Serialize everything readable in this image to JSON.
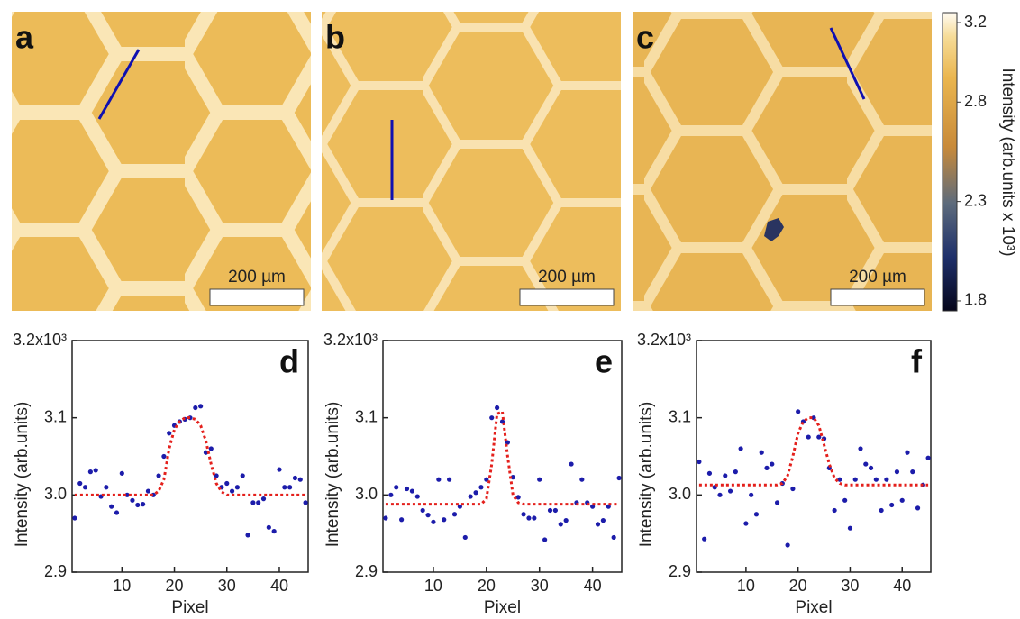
{
  "images": [
    {
      "label": "a",
      "scalebar": "200 µm"
    },
    {
      "label": "b",
      "scalebar": "200 µm"
    },
    {
      "label": "c",
      "scalebar": "200 µm"
    }
  ],
  "colorbar": {
    "label": "Intensity (arb.units  x 10³)",
    "ylim": [
      1.75,
      3.25
    ],
    "ticks": [
      1.8,
      2.3,
      2.8,
      3.2
    ]
  },
  "chart_data": [
    {
      "type": "scatter",
      "label": "d",
      "x_label": "Pixel",
      "y_label": "Intensity (arb.units)",
      "xlim": [
        0.5,
        45.5
      ],
      "xticks": [
        10,
        20,
        30,
        40
      ],
      "ylim": [
        2.9,
        3.2
      ],
      "yticks": [
        2.9,
        {
          "value": 3.0,
          "label": "3.0"
        },
        3.1,
        {
          "value": 3.2,
          "label": "3.2x10³"
        }
      ],
      "x": [
        1,
        2,
        3,
        4,
        5,
        6,
        7,
        8,
        9,
        10,
        11,
        12,
        13,
        14,
        15,
        16,
        17,
        18,
        19,
        20,
        21,
        22,
        23,
        24,
        25,
        26,
        27,
        28,
        29,
        30,
        31,
        32,
        33,
        34,
        35,
        36,
        37,
        38,
        39,
        40,
        41,
        42,
        43,
        44,
        45
      ],
      "series": [
        {
          "mode": "markers",
          "color": "#1c1caa",
          "values": [
            2.97,
            3.015,
            3.01,
            3.03,
            3.032,
            2.998,
            3.01,
            2.985,
            2.977,
            3.028,
            3.0,
            2.993,
            2.987,
            2.988,
            3.005,
            3.0,
            3.025,
            3.05,
            3.08,
            3.09,
            3.095,
            3.098,
            3.1,
            3.113,
            3.115,
            3.055,
            3.06,
            3.025,
            3.01,
            3.015,
            3.005,
            3.01,
            3.025,
            2.948,
            2.99,
            2.99,
            2.995,
            2.958,
            2.953,
            3.033,
            3.01,
            3.01,
            3.022,
            3.02,
            2.99
          ]
        },
        {
          "mode": "line",
          "color": "#e4201c",
          "values": [
            3.0,
            3.0,
            3.0,
            3.0,
            3.0,
            3.0,
            3.0,
            3.0,
            3.0,
            3.0,
            3.0,
            3.0,
            3.0,
            3.0,
            3.0,
            3.0,
            3.005,
            3.02,
            3.06,
            3.085,
            3.095,
            3.1,
            3.1,
            3.098,
            3.09,
            3.07,
            3.04,
            3.015,
            3.004,
            3.0,
            3.0,
            3.0,
            3.0,
            3.0,
            3.0,
            3.0,
            3.0,
            3.0,
            3.0,
            3.0,
            3.0,
            3.0,
            3.0,
            3.0,
            3.0
          ]
        }
      ]
    },
    {
      "type": "scatter",
      "label": "e",
      "x_label": "Pixel",
      "y_label": "Intensity (arb.units)",
      "xlim": [
        0.5,
        45.5
      ],
      "xticks": [
        10,
        20,
        30,
        40
      ],
      "ylim": [
        2.9,
        3.2
      ],
      "yticks": [
        2.9,
        {
          "value": 3.0,
          "label": "3.0"
        },
        3.1,
        {
          "value": 3.2,
          "label": "3.2x10³"
        }
      ],
      "x": [
        1,
        2,
        3,
        4,
        5,
        6,
        7,
        8,
        9,
        10,
        11,
        12,
        13,
        14,
        15,
        16,
        17,
        18,
        19,
        20,
        21,
        22,
        23,
        24,
        25,
        26,
        27,
        28,
        29,
        30,
        31,
        32,
        33,
        34,
        35,
        36,
        37,
        38,
        39,
        40,
        41,
        42,
        43,
        44,
        45
      ],
      "series": [
        {
          "mode": "markers",
          "color": "#1c1caa",
          "values": [
            2.97,
            3.0,
            3.01,
            2.968,
            3.008,
            3.005,
            2.998,
            2.98,
            2.974,
            2.965,
            3.02,
            2.968,
            3.02,
            2.975,
            2.985,
            2.945,
            2.998,
            3.003,
            3.01,
            3.02,
            3.1,
            3.113,
            3.095,
            3.068,
            3.023,
            2.997,
            2.975,
            2.97,
            2.97,
            3.02,
            2.942,
            2.98,
            2.98,
            2.962,
            2.967,
            3.04,
            2.99,
            3.02,
            2.99,
            2.985,
            2.962,
            2.967,
            2.985,
            2.945,
            3.022
          ]
        },
        {
          "mode": "line",
          "color": "#e4201c",
          "values": [
            2.988,
            2.988,
            2.988,
            2.988,
            2.988,
            2.988,
            2.988,
            2.988,
            2.988,
            2.988,
            2.988,
            2.988,
            2.988,
            2.988,
            2.988,
            2.988,
            2.988,
            2.988,
            2.988,
            2.995,
            3.04,
            3.105,
            3.108,
            3.05,
            3.0,
            2.99,
            2.988,
            2.988,
            2.988,
            2.988,
            2.988,
            2.988,
            2.988,
            2.988,
            2.988,
            2.988,
            2.988,
            2.988,
            2.988,
            2.988,
            2.988,
            2.988,
            2.988,
            2.988,
            2.988
          ]
        }
      ]
    },
    {
      "type": "scatter",
      "label": "f",
      "x_label": "Pixel",
      "y_label": "Intensity (arb.units)",
      "xlim": [
        0.5,
        45.5
      ],
      "xticks": [
        10,
        20,
        30,
        40
      ],
      "ylim": [
        2.9,
        3.2
      ],
      "yticks": [
        2.9,
        {
          "value": 3.0,
          "label": "3.0"
        },
        3.1,
        {
          "value": 3.2,
          "label": "3.2x10³"
        }
      ],
      "x": [
        1,
        2,
        3,
        4,
        5,
        6,
        7,
        8,
        9,
        10,
        11,
        12,
        13,
        14,
        15,
        16,
        17,
        18,
        19,
        20,
        21,
        22,
        23,
        24,
        25,
        26,
        27,
        28,
        29,
        30,
        31,
        32,
        33,
        34,
        35,
        36,
        37,
        38,
        39,
        40,
        41,
        42,
        43,
        44,
        45
      ],
      "series": [
        {
          "mode": "markers",
          "color": "#1c1caa",
          "values": [
            3.043,
            2.943,
            3.028,
            3.01,
            3.0,
            3.025,
            3.005,
            3.03,
            3.06,
            2.963,
            3.0,
            2.975,
            3.055,
            3.035,
            3.04,
            2.99,
            3.015,
            2.935,
            3.008,
            3.108,
            3.095,
            3.075,
            3.1,
            3.075,
            3.073,
            3.035,
            2.98,
            3.02,
            2.993,
            2.957,
            3.02,
            3.06,
            3.04,
            3.035,
            3.02,
            2.98,
            3.02,
            2.987,
            3.03,
            2.993,
            3.055,
            3.03,
            2.983,
            3.013,
            3.048
          ]
        },
        {
          "mode": "line",
          "color": "#e4201c",
          "values": [
            3.013,
            3.013,
            3.013,
            3.013,
            3.013,
            3.013,
            3.013,
            3.013,
            3.013,
            3.013,
            3.013,
            3.013,
            3.013,
            3.013,
            3.013,
            3.013,
            3.015,
            3.025,
            3.05,
            3.08,
            3.095,
            3.1,
            3.1,
            3.09,
            3.065,
            3.04,
            3.022,
            3.015,
            3.013,
            3.013,
            3.013,
            3.013,
            3.013,
            3.013,
            3.013,
            3.013,
            3.013,
            3.013,
            3.013,
            3.013,
            3.013,
            3.013,
            3.013,
            3.013,
            3.013
          ]
        }
      ]
    }
  ]
}
